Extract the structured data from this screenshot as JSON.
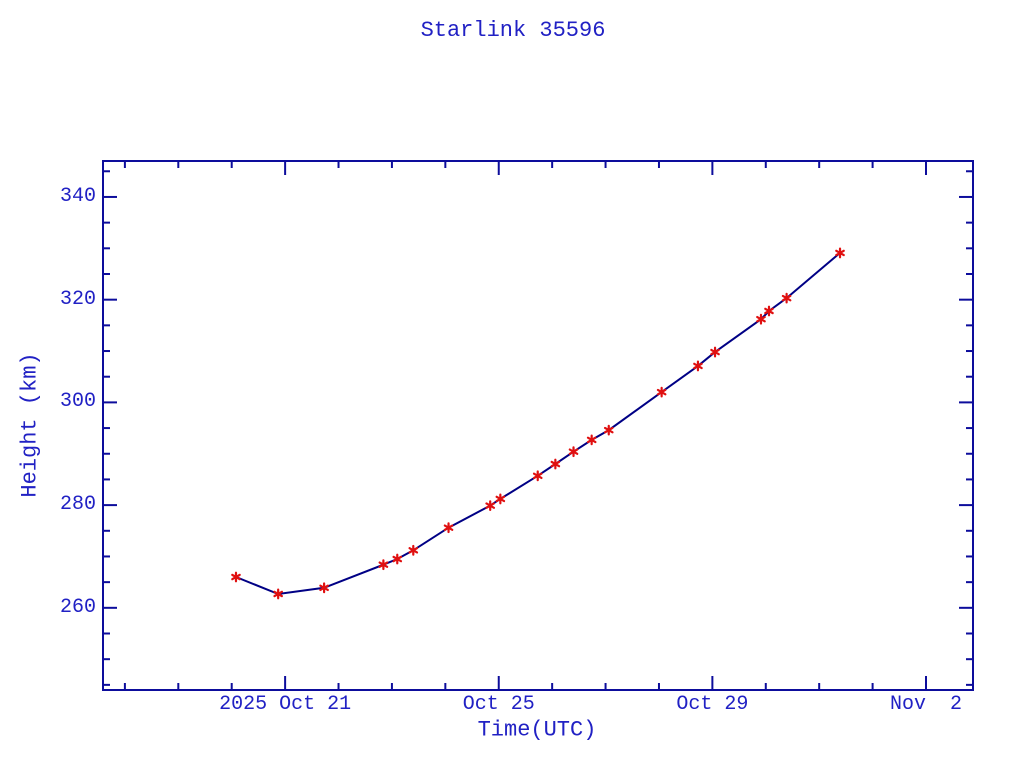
{
  "chart_data": {
    "type": "line",
    "title": "Starlink 35596",
    "xlabel": "Time(UTC)",
    "ylabel": "Height (km)",
    "x_unit": "days since 2025 Oct 21 00:00 UTC",
    "points": [
      {
        "day": -0.92,
        "height_km": 266.0
      },
      {
        "day": -0.13,
        "height_km": 262.7
      },
      {
        "day": 0.73,
        "height_km": 263.9
      },
      {
        "day": 1.84,
        "height_km": 268.4
      },
      {
        "day": 2.1,
        "height_km": 269.5
      },
      {
        "day": 2.4,
        "height_km": 271.2
      },
      {
        "day": 3.06,
        "height_km": 275.6
      },
      {
        "day": 3.84,
        "height_km": 279.9
      },
      {
        "day": 4.03,
        "height_km": 281.2
      },
      {
        "day": 4.73,
        "height_km": 285.7
      },
      {
        "day": 5.06,
        "height_km": 288.0
      },
      {
        "day": 5.4,
        "height_km": 290.4
      },
      {
        "day": 5.74,
        "height_km": 292.7
      },
      {
        "day": 6.06,
        "height_km": 294.6
      },
      {
        "day": 7.05,
        "height_km": 302.0
      },
      {
        "day": 7.73,
        "height_km": 307.1
      },
      {
        "day": 8.05,
        "height_km": 309.8
      },
      {
        "day": 8.91,
        "height_km": 316.2
      },
      {
        "day": 9.06,
        "height_km": 317.8
      },
      {
        "day": 9.39,
        "height_km": 320.3
      },
      {
        "day": 10.39,
        "height_km": 329.1
      }
    ],
    "xlim": [
      -3.41,
      12.88
    ],
    "ylim": [
      244,
      347
    ],
    "x_major_ticks": [
      {
        "pos": 0,
        "label": "2025 Oct 21"
      },
      {
        "pos": 4,
        "label": "Oct 25"
      },
      {
        "pos": 8,
        "label": "Oct 29"
      },
      {
        "pos": 12,
        "label": "Nov  2"
      }
    ],
    "x_minor_step": 1,
    "y_major_ticks": [
      {
        "pos": 260,
        "label": "260"
      },
      {
        "pos": 280,
        "label": "280"
      },
      {
        "pos": 300,
        "label": "300"
      },
      {
        "pos": 320,
        "label": "320"
      },
      {
        "pos": 340,
        "label": "340"
      }
    ],
    "y_minor_step": 5,
    "grid": false,
    "legend": "none",
    "tick_style": "inward, mirrored on all four sides",
    "marker": "red-asterisk",
    "colors": {
      "background": "#ffffff",
      "text": "#2121c4",
      "frame": "#0d0d9c",
      "line": "#000085",
      "marker": "#e01010"
    }
  }
}
